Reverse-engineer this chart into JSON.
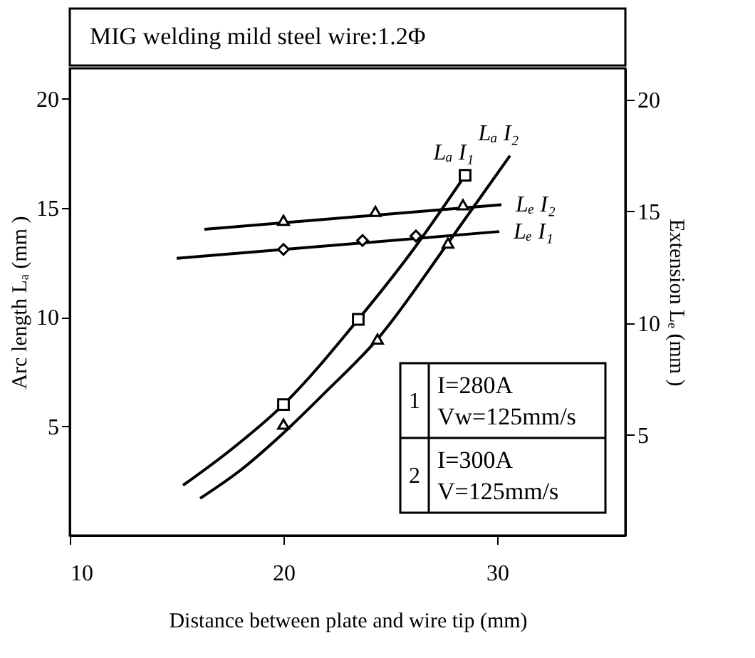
{
  "chart_data": {
    "type": "line",
    "title": "MIG  welding  mild  steel  wire:1.2Φ",
    "xlabel": "Distance  between  plate  and  wire  tip (mm)",
    "ylabel": "Arc  length  Lₐ (mm )",
    "y2label": "Extension  Lₑ (mm )",
    "xlim": [
      10,
      36
    ],
    "xticks": [
      10,
      20,
      30
    ],
    "ylim": [
      0,
      21.4
    ],
    "yticks": [
      5,
      10,
      15,
      20
    ],
    "y2lim": [
      0.5,
      21.4
    ],
    "y2ticks": [
      5,
      10,
      15,
      20
    ],
    "grid": false,
    "annotations": [
      "1",
      "I=280A",
      "Vw=125mm/s",
      "2",
      "I=300A",
      "V=125mm/s"
    ],
    "series": [
      {
        "name": "Lₐ I₁",
        "axis": "y",
        "color": "#000000",
        "x": [
          15.3,
          17.5,
          20,
          23.5,
          26,
          28.5
        ],
        "values": [
          2.3,
          3.9,
          6.0,
          9.9,
          13.0,
          16.5
        ]
      },
      {
        "type": "scatter",
        "axis": "y",
        "color": "#000000",
        "marker": "square",
        "x": [
          20,
          23.5,
          28.5
        ],
        "values": [
          6.0,
          9.9,
          16.5
        ]
      },
      {
        "name": "Lₐ I₂",
        "axis": "y",
        "color": "#000000",
        "x": [
          16.1,
          18,
          20,
          22,
          24.4,
          27.7,
          30.6
        ],
        "values": [
          1.7,
          3.0,
          4.7,
          6.6,
          9.0,
          13.4,
          17.4
        ]
      },
      {
        "type": "scatter",
        "axis": "y",
        "color": "#000000",
        "marker": "triangle",
        "x": [
          20,
          24.4,
          27.7
        ],
        "values": [
          5.1,
          9.0,
          13.4
        ]
      },
      {
        "name": "Lₑ I₂",
        "axis": "y2",
        "color": "#000000",
        "x": [
          16.3,
          30.2
        ],
        "values": [
          14.2,
          15.3
        ]
      },
      {
        "type": "scatter",
        "axis": "y2",
        "color": "#000000",
        "marker": "triangle",
        "x": [
          20,
          24.3,
          28.4
        ],
        "values": [
          14.6,
          15.0,
          15.3
        ]
      },
      {
        "name": "Lₑ I₁",
        "axis": "y2",
        "color": "#000000",
        "x": [
          15.0,
          30.1
        ],
        "values": [
          12.9,
          14.1
        ]
      },
      {
        "type": "scatter",
        "axis": "y2",
        "color": "#000000",
        "marker": "diamond",
        "x": [
          20,
          23.7,
          26.2
        ],
        "values": [
          13.3,
          13.7,
          13.9
        ]
      }
    ]
  }
}
